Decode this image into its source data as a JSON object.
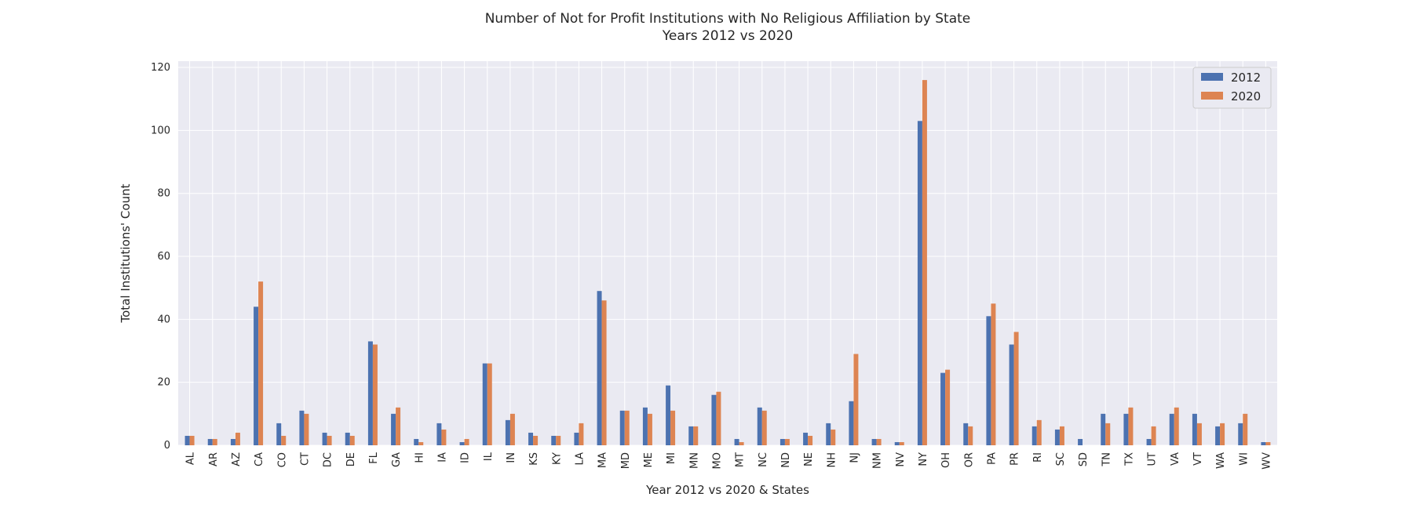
{
  "chart_data": {
    "type": "bar",
    "title": "Number of Not for Profit Institutions with No Religious Affiliation by State",
    "subtitle": "Years 2012 vs 2020",
    "xlabel": "Year 2012 vs 2020 & States",
    "ylabel": "Total Institutions' Count",
    "ylim": [
      0,
      122
    ],
    "yticks": [
      0,
      20,
      40,
      60,
      80,
      100,
      120
    ],
    "grid": true,
    "legend_position": "top-right",
    "categories": [
      "AL",
      "AR",
      "AZ",
      "CA",
      "CO",
      "CT",
      "DC",
      "DE",
      "FL",
      "GA",
      "HI",
      "IA",
      "ID",
      "IL",
      "IN",
      "KS",
      "KY",
      "LA",
      "MA",
      "MD",
      "ME",
      "MI",
      "MN",
      "MO",
      "MT",
      "NC",
      "ND",
      "NE",
      "NH",
      "NJ",
      "NM",
      "NV",
      "NY",
      "OH",
      "OR",
      "PA",
      "PR",
      "RI",
      "SC",
      "SD",
      "TN",
      "TX",
      "UT",
      "VA",
      "VT",
      "WA",
      "WI",
      "WV"
    ],
    "series": [
      {
        "name": "2012",
        "color": "#4c72b0",
        "values": [
          3,
          2,
          2,
          44,
          7,
          11,
          4,
          4,
          33,
          10,
          2,
          7,
          1,
          26,
          8,
          4,
          3,
          4,
          49,
          11,
          12,
          19,
          6,
          16,
          2,
          12,
          2,
          4,
          7,
          14,
          2,
          1,
          103,
          23,
          7,
          41,
          32,
          6,
          5,
          2,
          10,
          10,
          2,
          10,
          10,
          6,
          7,
          1
        ]
      },
      {
        "name": "2020",
        "color": "#dd8452",
        "values": [
          3,
          2,
          4,
          52,
          3,
          10,
          3,
          3,
          32,
          12,
          1,
          5,
          2,
          26,
          10,
          3,
          3,
          7,
          46,
          11,
          10,
          11,
          6,
          17,
          1,
          11,
          2,
          3,
          5,
          29,
          2,
          1,
          116,
          24,
          6,
          45,
          36,
          8,
          6,
          0,
          7,
          12,
          6,
          12,
          7,
          7,
          10,
          1
        ]
      }
    ],
    "colors": {
      "plot_background": "#eaeaf2",
      "grid": "#ffffff"
    }
  }
}
